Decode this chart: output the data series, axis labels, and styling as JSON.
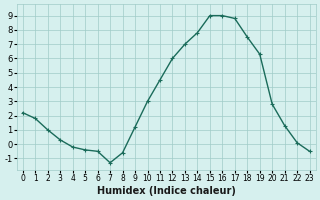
{
  "x": [
    0,
    1,
    2,
    3,
    4,
    5,
    6,
    7,
    8,
    9,
    10,
    11,
    12,
    13,
    14,
    15,
    16,
    17,
    18,
    19,
    20,
    21,
    22,
    23
  ],
  "y": [
    2.2,
    1.8,
    1.0,
    0.3,
    -0.2,
    -0.4,
    -0.5,
    -1.3,
    -0.6,
    1.2,
    3.0,
    4.5,
    6.0,
    7.0,
    7.8,
    9.0,
    9.0,
    8.8,
    7.5,
    6.3,
    2.8,
    1.3,
    0.1,
    -0.5
  ],
  "xlabel": "Humidex (Indice chaleur)",
  "xlim": [
    -0.5,
    23.5
  ],
  "ylim": [
    -1.8,
    9.8
  ],
  "yticks": [
    -1,
    0,
    1,
    2,
    3,
    4,
    5,
    6,
    7,
    8,
    9
  ],
  "xticks": [
    0,
    1,
    2,
    3,
    4,
    5,
    6,
    7,
    8,
    9,
    10,
    11,
    12,
    13,
    14,
    15,
    16,
    17,
    18,
    19,
    20,
    21,
    22,
    23
  ],
  "line_color": "#1a6b5a",
  "marker": "+",
  "bg_color": "#d6f0ee",
  "grid_color": "#a0ccc8",
  "label_color": "#1a1a1a",
  "axis_label_fontsize": 7,
  "tick_fontsize": 6.5
}
